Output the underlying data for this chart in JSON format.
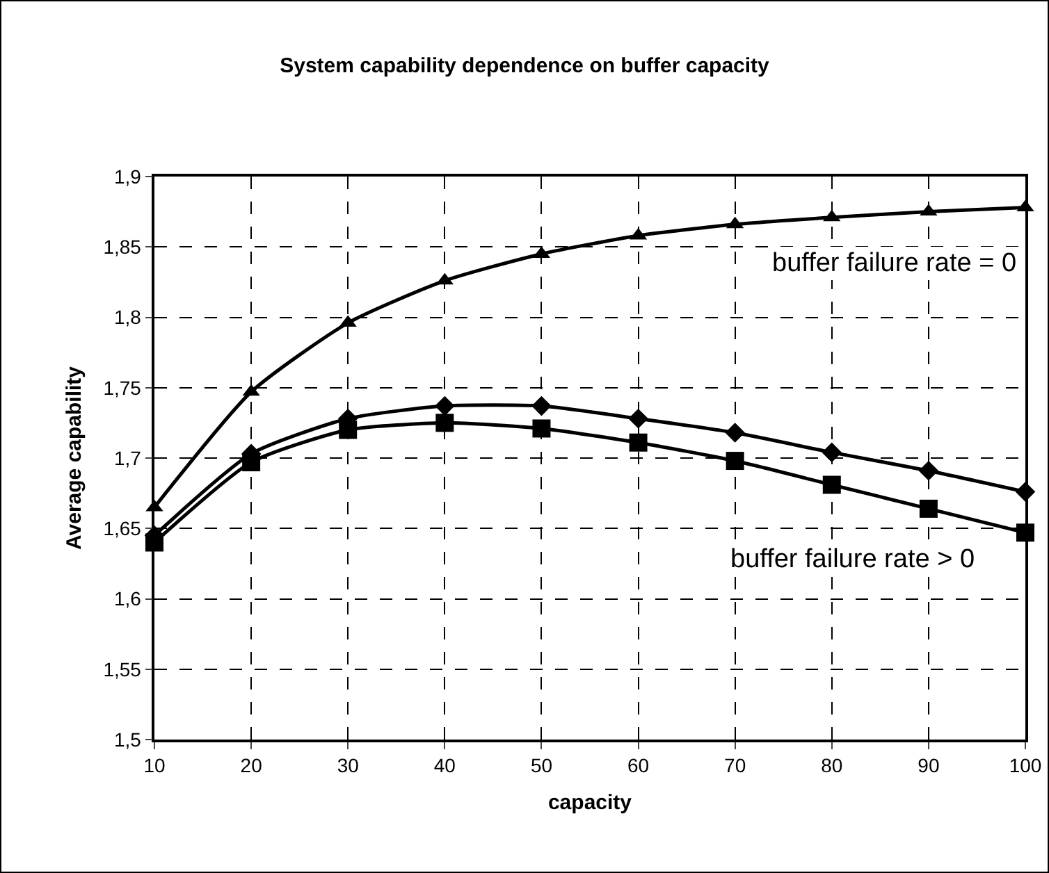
{
  "chart_data": {
    "type": "line",
    "title": "System capability dependence on buffer capacity",
    "xlabel": "capacity",
    "ylabel": "Average capability",
    "x": [
      10,
      20,
      30,
      40,
      50,
      60,
      70,
      80,
      90,
      100
    ],
    "series": [
      {
        "color": "#000000",
        "marker": "triangle",
        "values": [
          1.665,
          1.747,
          1.796,
          1.826,
          1.845,
          1.858,
          1.866,
          1.871,
          1.875,
          1.878
        ]
      },
      {
        "color": "#000000",
        "marker": "diamond",
        "values": [
          1.645,
          1.703,
          1.728,
          1.737,
          1.737,
          1.728,
          1.718,
          1.704,
          1.691,
          1.676
        ]
      },
      {
        "color": "#000000",
        "marker": "square",
        "values": [
          1.64,
          1.697,
          1.72,
          1.725,
          1.721,
          1.711,
          1.698,
          1.681,
          1.664,
          1.647
        ]
      }
    ],
    "xlim": [
      10,
      100
    ],
    "xticks": [
      10,
      20,
      30,
      40,
      50,
      60,
      70,
      80,
      90,
      100
    ],
    "ylim": [
      1.5,
      1.9
    ],
    "yticks": [
      {
        "value": 1.5,
        "label": "1,5"
      },
      {
        "value": 1.55,
        "label": "1,55"
      },
      {
        "value": 1.6,
        "label": "1,6"
      },
      {
        "value": 1.65,
        "label": "1,65"
      },
      {
        "value": 1.7,
        "label": "1,7"
      },
      {
        "value": 1.75,
        "label": "1,75"
      },
      {
        "value": 1.8,
        "label": "1,8"
      },
      {
        "value": 1.85,
        "label": "1,85"
      },
      {
        "value": 1.9,
        "label": "1,9"
      }
    ],
    "grid": true,
    "line_style": "solid",
    "annotations": [
      "buffer failure rate = 0",
      "buffer failure rate > 0"
    ]
  }
}
